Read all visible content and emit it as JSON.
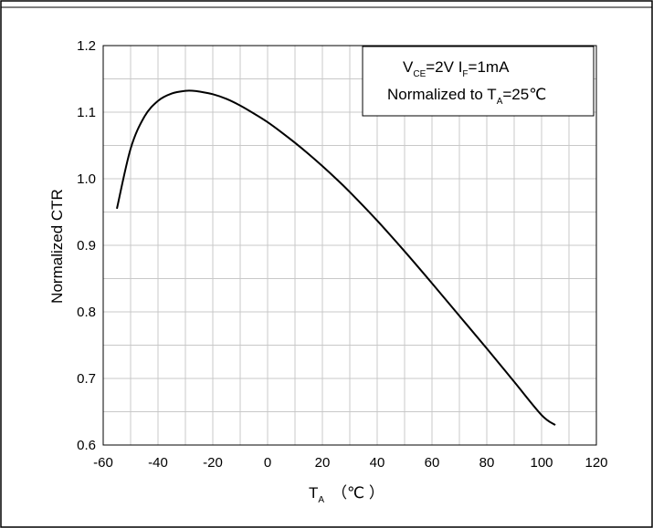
{
  "chart_data": {
    "type": "line",
    "xlabel": {
      "main": "T",
      "sub": "A",
      "unit": "（℃ ）"
    },
    "ylabel": "Normalized CTR",
    "xlim": [
      -60,
      120
    ],
    "ylim": [
      0.6,
      1.2
    ],
    "xticks": [
      "-60",
      "-40",
      "-20",
      "0",
      "20",
      "40",
      "60",
      "80",
      "100",
      "120"
    ],
    "yticks": [
      "0.6",
      "0.7",
      "0.8",
      "0.9",
      "1.0",
      "1.1",
      "1.2"
    ],
    "grid": true,
    "legend_position": "top-right",
    "annotation": {
      "line1": {
        "v": "V",
        "v_sub": "CE",
        "mid": "=2V I",
        "i_sub": "F",
        "end": "=1mA"
      },
      "line2": {
        "start": "Normalized to T",
        "sub": "A",
        "end": "=25℃"
      }
    },
    "series": [
      {
        "x": [
          -55,
          -50,
          -45,
          -40,
          -35,
          -30,
          -27,
          -25,
          -20,
          -15,
          -10,
          -5,
          0,
          5,
          10,
          15,
          20,
          25,
          30,
          40,
          50,
          60,
          70,
          80,
          90,
          100,
          105
        ],
        "y": [
          0.955,
          1.045,
          1.093,
          1.117,
          1.128,
          1.132,
          1.132,
          1.131,
          1.127,
          1.12,
          1.11,
          1.098,
          1.085,
          1.07,
          1.054,
          1.037,
          1.019,
          1.0,
          0.98,
          0.937,
          0.891,
          0.843,
          0.794,
          0.745,
          0.695,
          0.645,
          0.63
        ],
        "color": "#000000"
      }
    ]
  }
}
